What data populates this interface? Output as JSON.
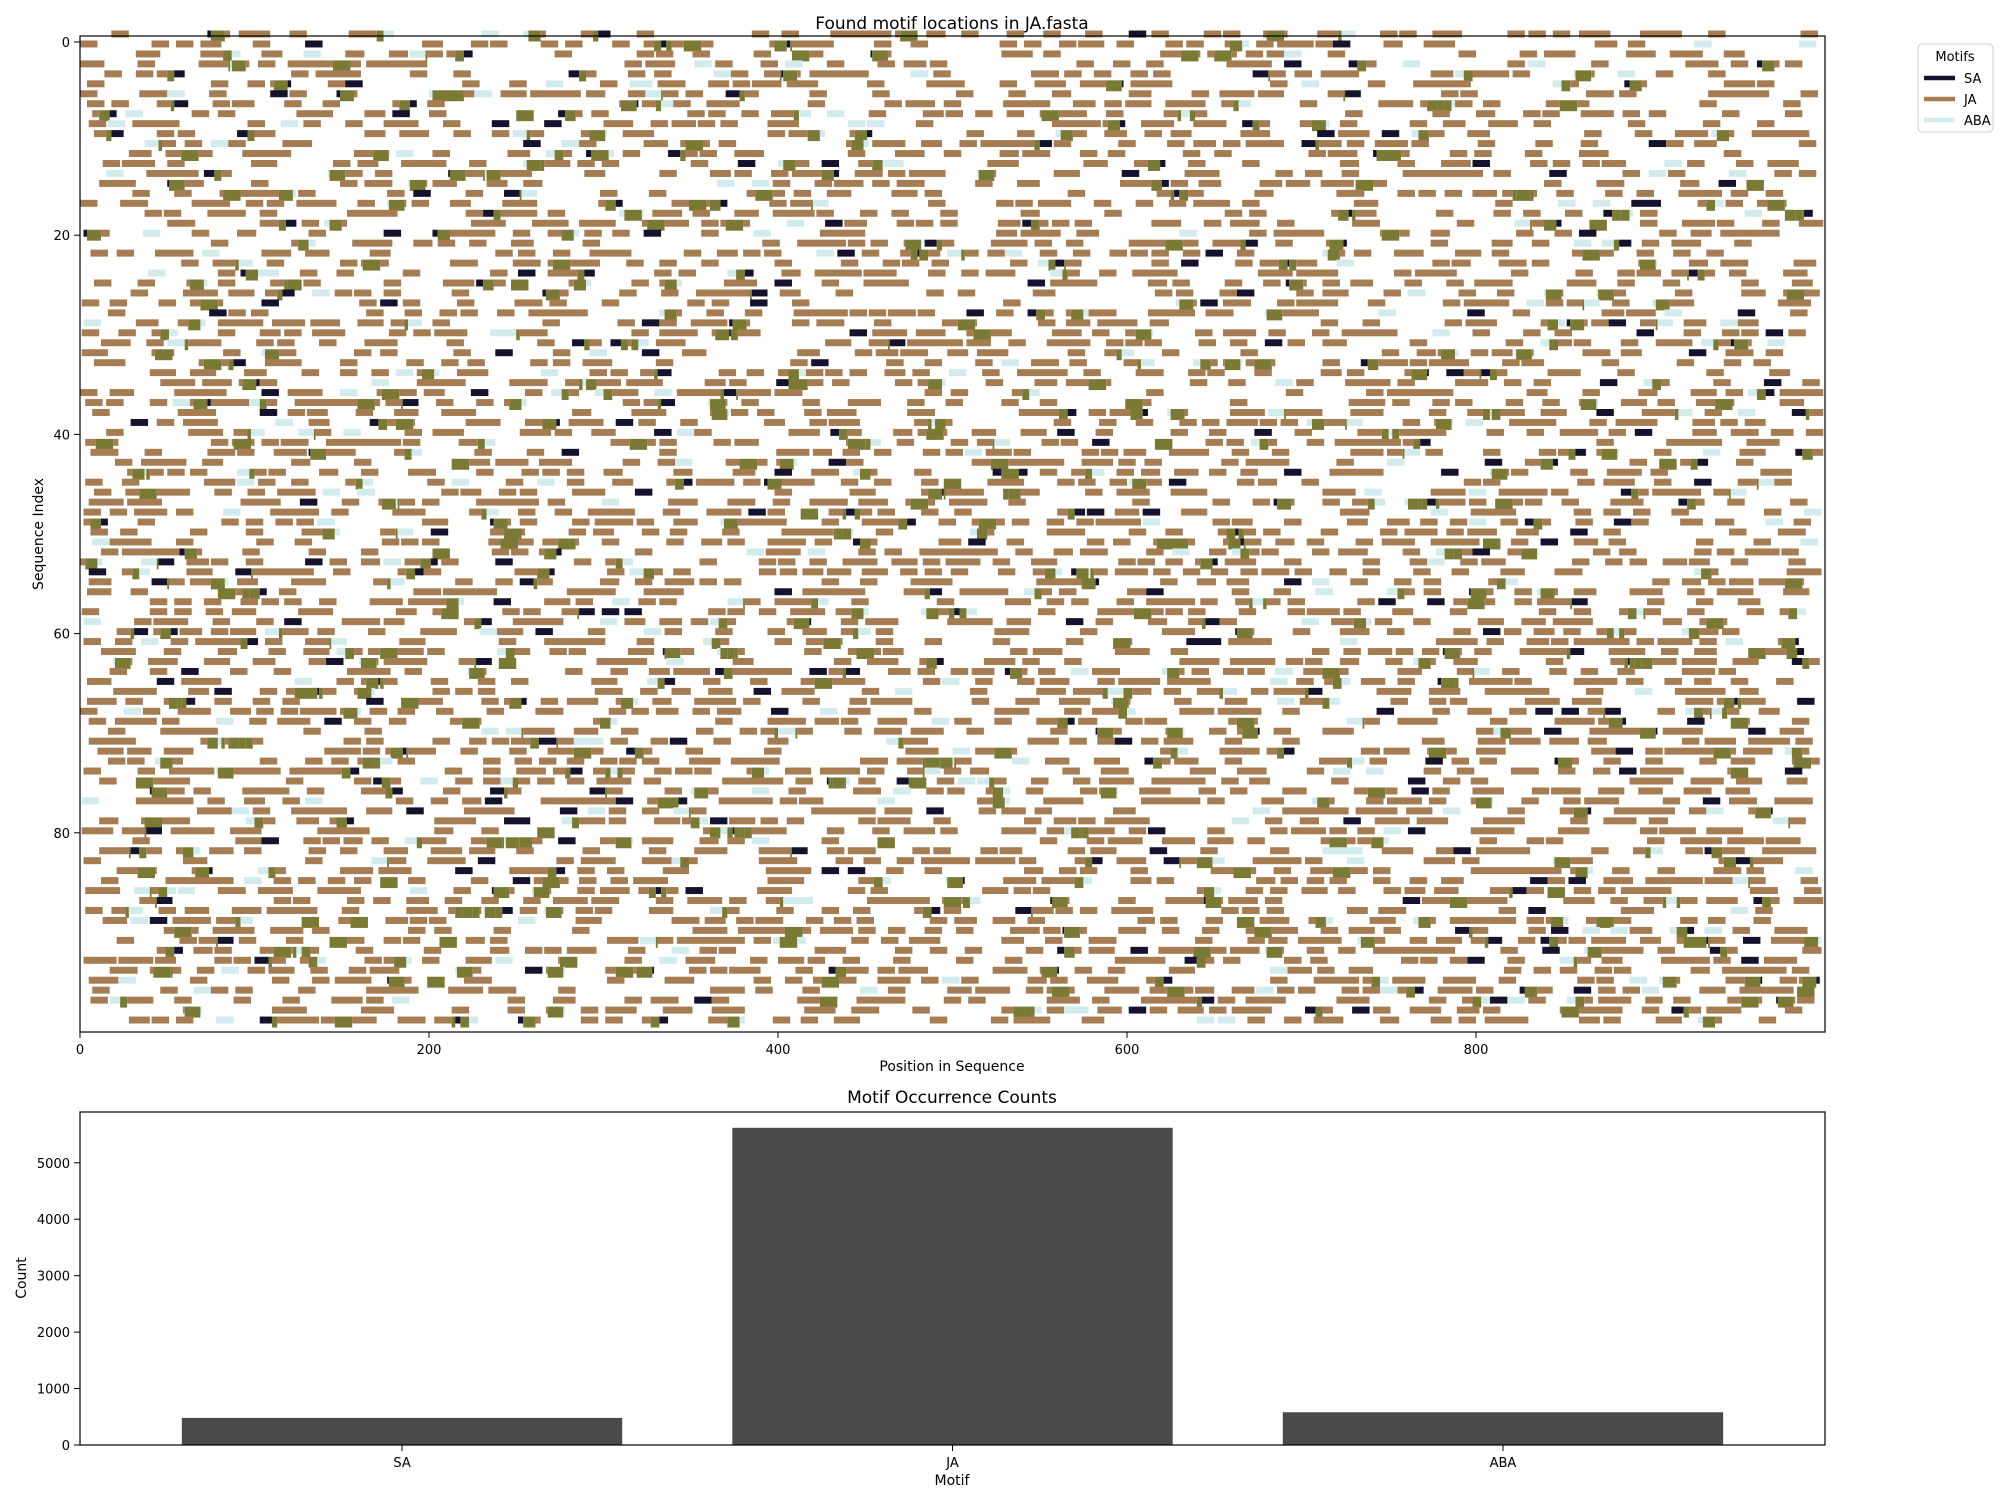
{
  "chart_data": [
    {
      "type": "heatmap",
      "title": "Found motif locations in JA.fasta",
      "xlabel": "Position in Sequence",
      "ylabel": "Sequence Index",
      "xlim": [
        0,
        1000
      ],
      "ylim": [
        0,
        100
      ],
      "y_inverted": true,
      "x_ticks": [
        0,
        200,
        400,
        600,
        800
      ],
      "y_ticks": [
        0,
        20,
        40,
        60,
        80
      ],
      "x_tick_labels": [
        "0",
        "200",
        "400",
        "600",
        "800"
      ],
      "y_tick_labels": [
        "0",
        "20",
        "40",
        "60",
        "80"
      ],
      "sequences": 100,
      "sequence_length": 1000,
      "motif_width": 10,
      "legend": {
        "title": "Motifs",
        "placement": "outside-top-right",
        "entries": [
          {
            "name": "SA",
            "color": "#15122e"
          },
          {
            "name": "JA",
            "color": "#a67c52"
          },
          {
            "name": "ABA",
            "color": "#d2ecee"
          }
        ]
      },
      "overlap_color": "#7b7a35",
      "grid": false
    },
    {
      "type": "bar",
      "title": "Motif Occurrence Counts",
      "xlabel": "Motif",
      "ylabel": "Count",
      "categories": [
        "SA",
        "JA",
        "ABA"
      ],
      "values": [
        480,
        5620,
        580
      ],
      "ylim": [
        0,
        5900
      ],
      "y_ticks": [
        0,
        1000,
        2000,
        3000,
        4000,
        5000
      ],
      "y_tick_labels": [
        "0",
        "1000",
        "2000",
        "3000",
        "4000",
        "5000"
      ],
      "bar_color": "#4a4a4a",
      "grid": false
    }
  ]
}
